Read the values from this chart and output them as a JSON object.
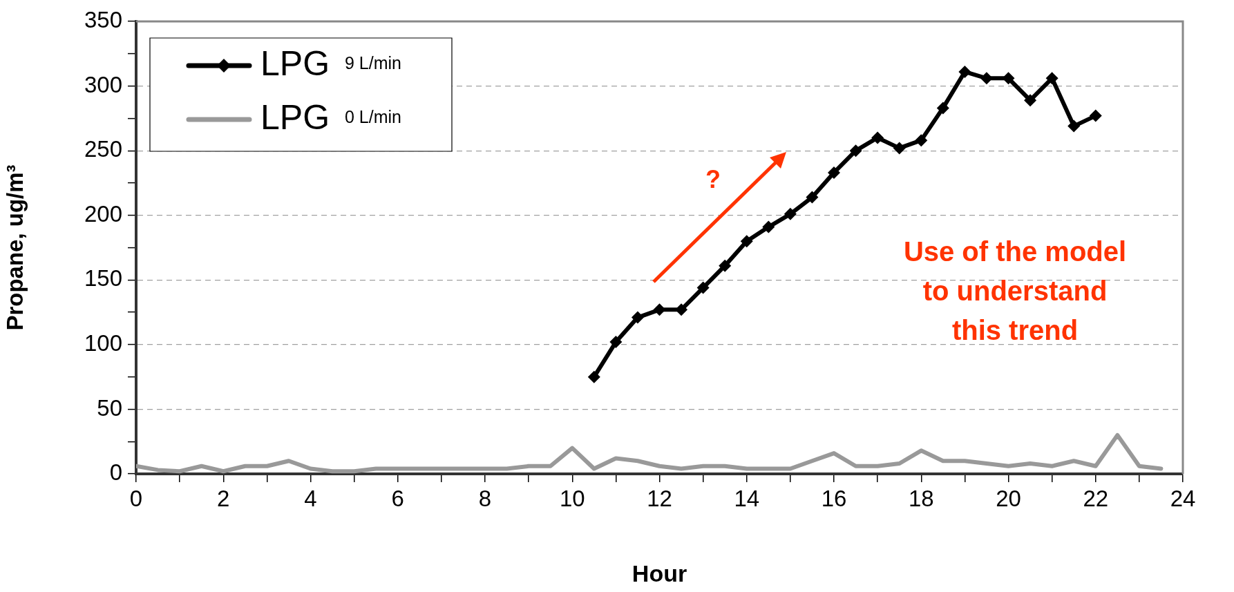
{
  "chart_data": {
    "type": "line",
    "xlabel": "Hour",
    "ylabel": "Propane, ug/m³",
    "xlim": [
      0,
      24
    ],
    "xticks": [
      0,
      {
        "value": 1,
        "label": null
      },
      2,
      {
        "value": 3,
        "label": null
      },
      4,
      {
        "value": 5,
        "label": null
      },
      6,
      {
        "value": 7,
        "label": null
      },
      8,
      {
        "value": 9,
        "label": null
      },
      10,
      {
        "value": 11,
        "label": null
      },
      12,
      {
        "value": 13,
        "label": null
      },
      14,
      {
        "value": 15,
        "label": null
      },
      16,
      {
        "value": 17,
        "label": null
      },
      18,
      {
        "value": 19,
        "label": null
      },
      20,
      {
        "value": 21,
        "label": null
      },
      22,
      {
        "value": 23,
        "label": null
      },
      24
    ],
    "ylim": [
      0,
      350
    ],
    "yticks": [
      0,
      {
        "value": 25,
        "label": null
      },
      50,
      {
        "value": 75,
        "label": null
      },
      100,
      {
        "value": 125,
        "label": null
      },
      150,
      {
        "value": 175,
        "label": null
      },
      200,
      {
        "value": 225,
        "label": null
      },
      250,
      {
        "value": 275,
        "label": null
      },
      300,
      {
        "value": 325,
        "label": null
      },
      350
    ],
    "grid": "y",
    "legend": "top left",
    "line_style": "solid",
    "series": [
      {
        "name": "LPG 9 L/min",
        "color": "#000000",
        "marker": "diamond",
        "x": [
          10.5,
          11,
          11.5,
          12,
          12.5,
          13,
          13.5,
          14,
          14.5,
          15,
          15.5,
          16,
          16.5,
          17,
          17.5,
          18,
          18.5,
          19,
          19.5,
          20,
          20.5,
          21,
          21.5,
          22
        ],
        "values": [
          75,
          102,
          121,
          127,
          127,
          144,
          161,
          180,
          191,
          201,
          214,
          233,
          250,
          260,
          252,
          258,
          283,
          311,
          306,
          306,
          289,
          306,
          269,
          277
        ]
      },
      {
        "name": "LPG 0 L/min",
        "color": "#999999",
        "marker": "none",
        "x": [
          0,
          0.5,
          1,
          1.5,
          2,
          2.5,
          3,
          3.5,
          4,
          4.5,
          5,
          5.5,
          6,
          6.5,
          7,
          7.5,
          8,
          8.5,
          9,
          9.5,
          10,
          10.5,
          11,
          11.5,
          12,
          12.5,
          13,
          13.5,
          14,
          14.5,
          15,
          15.5,
          16,
          16.5,
          17,
          17.5,
          18,
          18.5,
          19,
          19.5,
          20,
          20.5,
          21,
          21.5,
          22,
          22.5,
          23,
          23.5
        ],
        "values": [
          6,
          3,
          2,
          6,
          2,
          6,
          6,
          10,
          4,
          2,
          2,
          4,
          4,
          4,
          4,
          4,
          4,
          4,
          6,
          6,
          20,
          4,
          12,
          10,
          6,
          4,
          6,
          6,
          4,
          4,
          4,
          10,
          16,
          6,
          6,
          8,
          18,
          10,
          10,
          8,
          6,
          8,
          6,
          10,
          6,
          30,
          6,
          4
        ]
      }
    ],
    "annotations": [
      "?",
      "Use of the model to understand this trend"
    ]
  }
}
